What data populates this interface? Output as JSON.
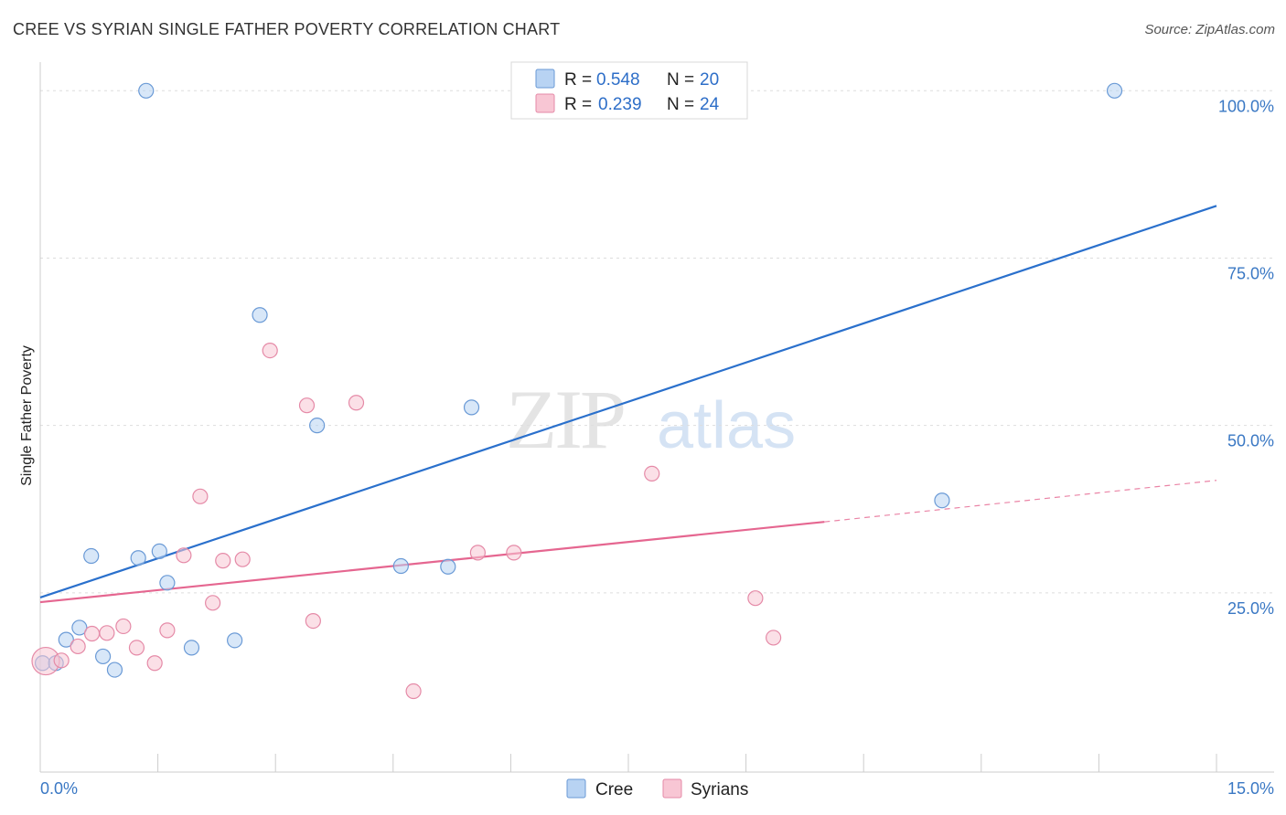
{
  "header": {
    "title": "CREE VS SYRIAN SINGLE FATHER POVERTY CORRELATION CHART",
    "source": "Source: ZipAtlas.com"
  },
  "watermark": {
    "zip": "ZIP",
    "atlas": "atlas"
  },
  "colors": {
    "cree_fill": "#b8d3f3",
    "cree_stroke": "#6a9ad6",
    "cree_line": "#2a70cc",
    "syr_fill": "#f8c6d4",
    "syr_stroke": "#e58aa7",
    "syr_line": "#e56690",
    "grid": "#dddddd",
    "tick_text": "#3a78c4"
  },
  "legend": {
    "cree": {
      "r_label": "R =",
      "r_value": "0.548",
      "n_label": "N =",
      "n_value": "20"
    },
    "syrians": {
      "r_label": "R =",
      "r_value": "0.239",
      "n_label": "N =",
      "n_value": "24"
    }
  },
  "bottom_legend": {
    "cree": "Cree",
    "syrians": "Syrians"
  },
  "chart_data": {
    "type": "scatter",
    "title": "CREE VS SYRIAN SINGLE FATHER POVERTY CORRELATION CHART",
    "xlabel": "",
    "ylabel": "Single Father Poverty",
    "xlim": [
      0,
      15
    ],
    "ylim": [
      0,
      104
    ],
    "x_tick_labels": {
      "min": "0.0%",
      "max": "15.0%"
    },
    "y_ticks": [
      {
        "value": 25,
        "label": "25.0%"
      },
      {
        "value": 50,
        "label": "50.0%"
      },
      {
        "value": 75,
        "label": "75.0%"
      },
      {
        "value": 100,
        "label": "100.0%"
      }
    ],
    "series": [
      {
        "name": "Cree",
        "points": [
          [
            0.03,
            14.5
          ],
          [
            0.2,
            14.5
          ],
          [
            0.33,
            18
          ],
          [
            0.5,
            19.8
          ],
          [
            0.65,
            30.5
          ],
          [
            0.8,
            15.5
          ],
          [
            0.95,
            13.5
          ],
          [
            1.25,
            30.2
          ],
          [
            1.35,
            100
          ],
          [
            1.52,
            31.2
          ],
          [
            1.62,
            26.5
          ],
          [
            1.93,
            16.8
          ],
          [
            2.48,
            17.9
          ],
          [
            2.8,
            66.5
          ],
          [
            3.53,
            50
          ],
          [
            4.6,
            29
          ],
          [
            5.2,
            28.9
          ],
          [
            5.5,
            52.7
          ],
          [
            11.5,
            38.8
          ],
          [
            13.7,
            100
          ]
        ],
        "trend": {
          "x": [
            0,
            15
          ],
          "y": [
            24.3,
            82.8
          ],
          "style": "solid"
        }
      },
      {
        "name": "Syrians",
        "points": [
          [
            0.07,
            14.8
          ],
          [
            0.27,
            14.9
          ],
          [
            0.48,
            17
          ],
          [
            0.66,
            18.9
          ],
          [
            0.85,
            19
          ],
          [
            1.06,
            20
          ],
          [
            1.23,
            16.8
          ],
          [
            1.46,
            14.5
          ],
          [
            1.62,
            19.4
          ],
          [
            1.83,
            30.6
          ],
          [
            2.04,
            39.4
          ],
          [
            2.2,
            23.5
          ],
          [
            2.33,
            29.8
          ],
          [
            2.58,
            30
          ],
          [
            2.93,
            61.2
          ],
          [
            3.4,
            53
          ],
          [
            3.48,
            20.8
          ],
          [
            4.03,
            53.4
          ],
          [
            4.76,
            10.3
          ],
          [
            5.58,
            31
          ],
          [
            6.04,
            31
          ],
          [
            7.8,
            42.8
          ],
          [
            9.12,
            24.2
          ],
          [
            9.35,
            18.3
          ]
        ],
        "trend": {
          "x": [
            0,
            10
          ],
          "y": [
            23.6,
            35.6
          ],
          "style": "solid",
          "extension": {
            "x": [
              10,
              15
            ],
            "y": [
              35.6,
              41.8
            ],
            "style": "dashed"
          }
        }
      }
    ]
  }
}
